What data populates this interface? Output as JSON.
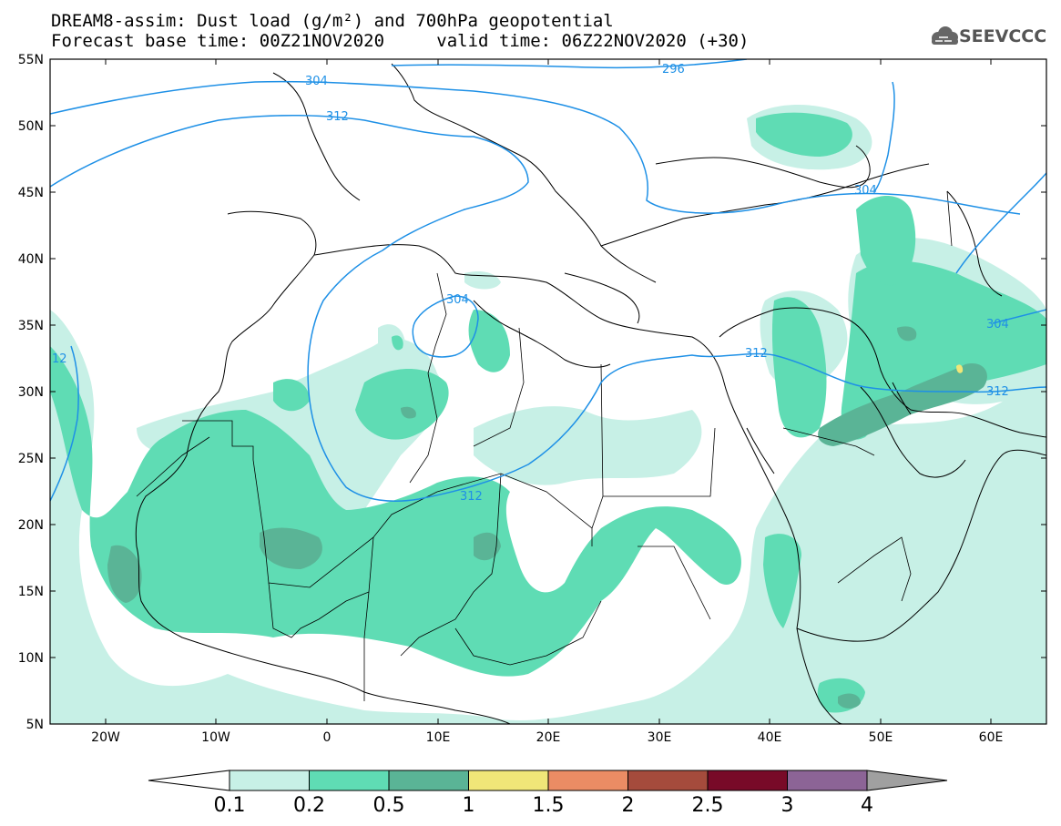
{
  "header": {
    "line1": "DREAM8-assim: Dust load (g/m²) and 700hPa geopotential",
    "line2_base": "Forecast base time: 00Z21NOV2020",
    "line2_valid": "valid time: 06Z22NOV2020 (+30)"
  },
  "logo": {
    "text": "SEEVCCC",
    "icon": "cloud-logo-icon"
  },
  "axes": {
    "lat_labels": [
      "55N",
      "50N",
      "45N",
      "40N",
      "35N",
      "30N",
      "25N",
      "20N",
      "15N",
      "10N",
      "5N"
    ],
    "lon_labels": [
      "20W",
      "10W",
      "0",
      "10E",
      "20E",
      "30E",
      "40E",
      "50E",
      "60E"
    ]
  },
  "contour_labels": [
    "304",
    "312",
    "296",
    "304",
    "312",
    "304",
    "312",
    "12",
    "304",
    "312"
  ],
  "colorbar": {
    "ticks": [
      "0.1",
      "0.2",
      "0.5",
      "1",
      "1.5",
      "2",
      "2.5",
      "3",
      "4"
    ],
    "colors": [
      "#c7f0e6",
      "#5fdcb4",
      "#5ab496",
      "#f0e678",
      "#eb8c64",
      "#a54b3c",
      "#780a28",
      "#8c6496"
    ],
    "under_color": "#ffffff",
    "over_color": "#a0a0a0"
  }
}
